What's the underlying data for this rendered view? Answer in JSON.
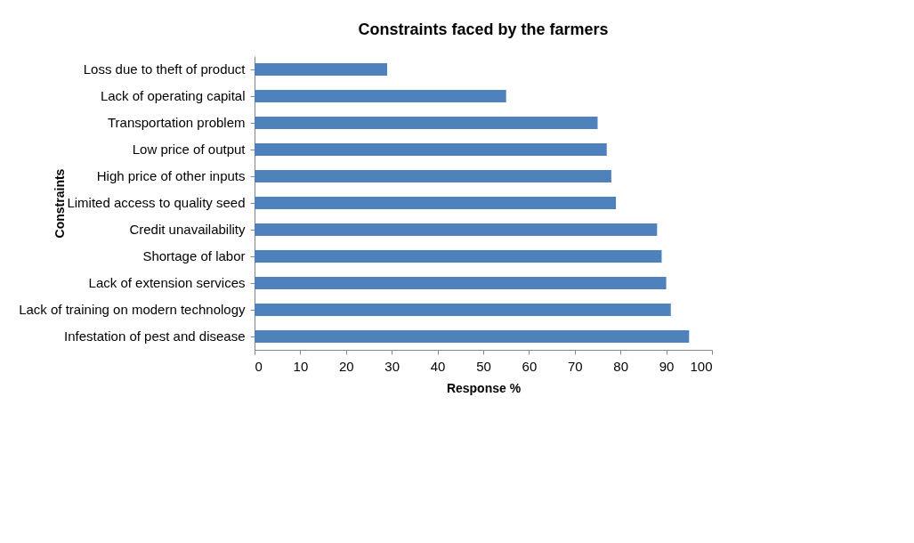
{
  "chart_data": {
    "type": "bar",
    "orientation": "horizontal",
    "title": "Constraints faced by the farmers",
    "xlabel": "Response %",
    "ylabel": "Constraints",
    "categories": [
      "Loss due to theft of product",
      "Lack of operating capital",
      "Transportation problem",
      "Low price of output",
      "High price of other inputs",
      "Limited access to quality seed",
      "Credit unavailability",
      "Shortage of labor",
      "Lack of extension services",
      "Lack of training on modern technology",
      "Infestation of pest and disease"
    ],
    "values": [
      29,
      55,
      75,
      77,
      78,
      79,
      88,
      89,
      90,
      91,
      95
    ],
    "color": "#4f81bd",
    "xlim": [
      0,
      100
    ],
    "xticks": [
      0,
      10,
      20,
      30,
      40,
      50,
      60,
      70,
      80,
      90,
      100
    ],
    "grid": false
  }
}
